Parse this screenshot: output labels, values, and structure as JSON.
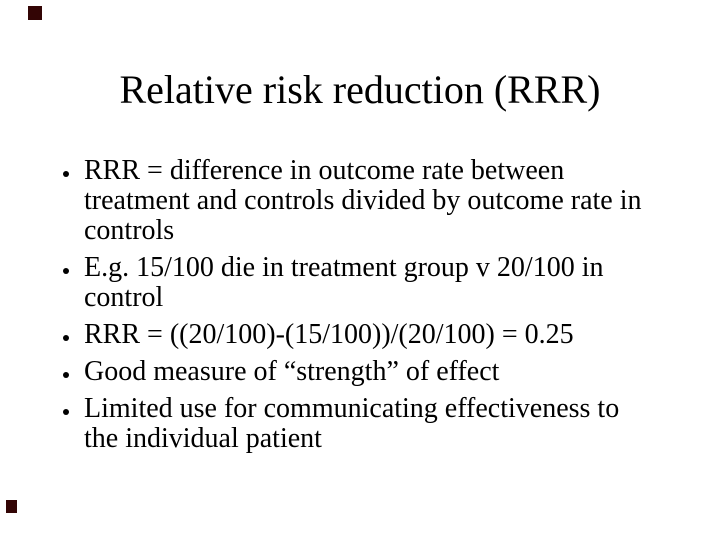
{
  "slide": {
    "title": "Relative risk reduction (RRR)",
    "bullets": [
      {
        "lines": [
          "RRR = difference in outcome rate between",
          "treatment and controls divided by outcome rate in",
          "controls"
        ]
      },
      {
        "lines": [
          "E.g. 15/100 die in treatment group v 20/100 in",
          "control"
        ]
      },
      {
        "lines": [
          "RRR = ((20/100)-(15/100))/(20/100) = 0.25"
        ]
      },
      {
        "lines": [
          "Good measure of “strength” of effect"
        ]
      },
      {
        "lines": [
          "Limited use for communicating effectiveness to",
          "the individual patient"
        ]
      }
    ],
    "colors": {
      "background": "#ffffff",
      "text": "#000000",
      "corner_mark": "#330505"
    }
  }
}
